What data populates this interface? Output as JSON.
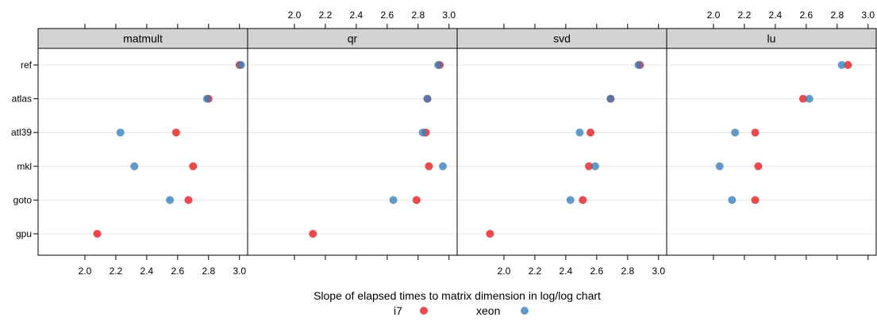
{
  "chart_data": {
    "type": "scatter",
    "xlabel": "Slope of elapsed times to matrix dimension in log/log chart",
    "categories": [
      "ref",
      "atlas",
      "atl39",
      "mkl",
      "goto",
      "gpu"
    ],
    "xlim": [
      1.7,
      3.05
    ],
    "xticks": [
      2.0,
      2.2,
      2.4,
      2.6,
      2.8,
      3.0
    ],
    "xtick_labels": [
      "2.0",
      "2.2",
      "2.4",
      "2.6",
      "2.8",
      "3.0"
    ],
    "grid": true,
    "legend_position": "bottom",
    "series": [
      {
        "name": "i7",
        "color": "#E41A1C"
      },
      {
        "name": "xeon",
        "color": "#377EB8"
      }
    ],
    "panels": [
      {
        "name": "matmult",
        "values": {
          "i7": [
            3.0,
            2.8,
            2.59,
            2.7,
            2.67,
            2.08
          ],
          "xeon": [
            3.01,
            2.79,
            2.23,
            2.32,
            2.55,
            null
          ]
        }
      },
      {
        "name": "qr",
        "values": {
          "i7": [
            2.94,
            2.86,
            2.85,
            2.87,
            2.79,
            2.12
          ],
          "xeon": [
            2.93,
            2.86,
            2.83,
            2.96,
            2.64,
            null
          ]
        }
      },
      {
        "name": "svd",
        "values": {
          "i7": [
            2.88,
            2.69,
            2.56,
            2.55,
            2.51,
            1.91
          ],
          "xeon": [
            2.87,
            2.69,
            2.49,
            2.59,
            2.43,
            null
          ]
        }
      },
      {
        "name": "lu",
        "values": {
          "i7": [
            2.87,
            2.58,
            2.27,
            2.29,
            2.27,
            null
          ],
          "xeon": [
            2.83,
            2.62,
            2.14,
            2.04,
            2.12,
            null
          ]
        }
      }
    ]
  }
}
